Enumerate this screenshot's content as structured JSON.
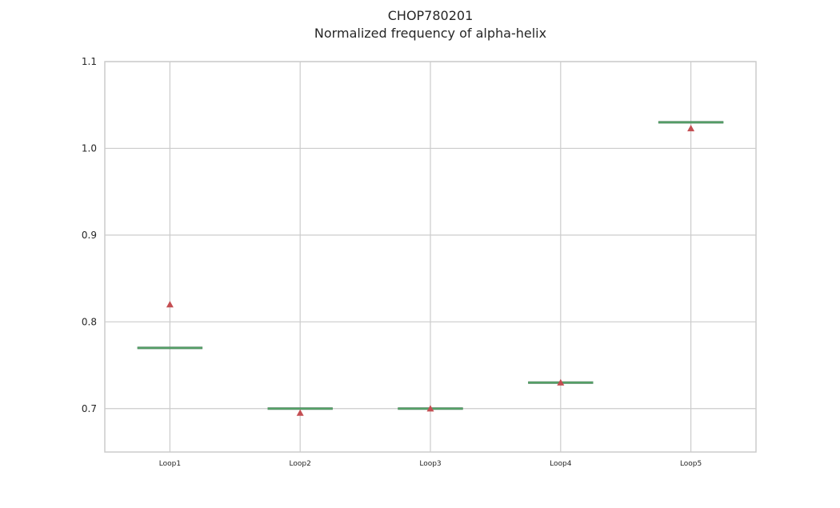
{
  "chart_data": {
    "type": "box",
    "title": "CHOP780201",
    "subtitle": "Normalized frequency of alpha-helix",
    "xlabel": "",
    "ylabel": "",
    "categories": [
      "Loop1",
      "Loop2",
      "Loop3",
      "Loop4",
      "Loop5"
    ],
    "medians": [
      0.77,
      0.7,
      0.7,
      0.73,
      1.03
    ],
    "means": [
      0.82,
      0.695,
      0.7,
      0.73,
      1.023
    ],
    "ylim": [
      0.65,
      1.1
    ],
    "yticks": [
      0.7,
      0.8,
      0.9,
      1.0,
      1.1
    ],
    "ytick_labels": [
      "0.7",
      "0.8",
      "0.9",
      "1.0",
      "1.1"
    ],
    "grid": true,
    "colors": {
      "median": "#55a868",
      "mean": "#c44e52",
      "grid": "#cccccc",
      "frame": "#cccccc"
    }
  }
}
